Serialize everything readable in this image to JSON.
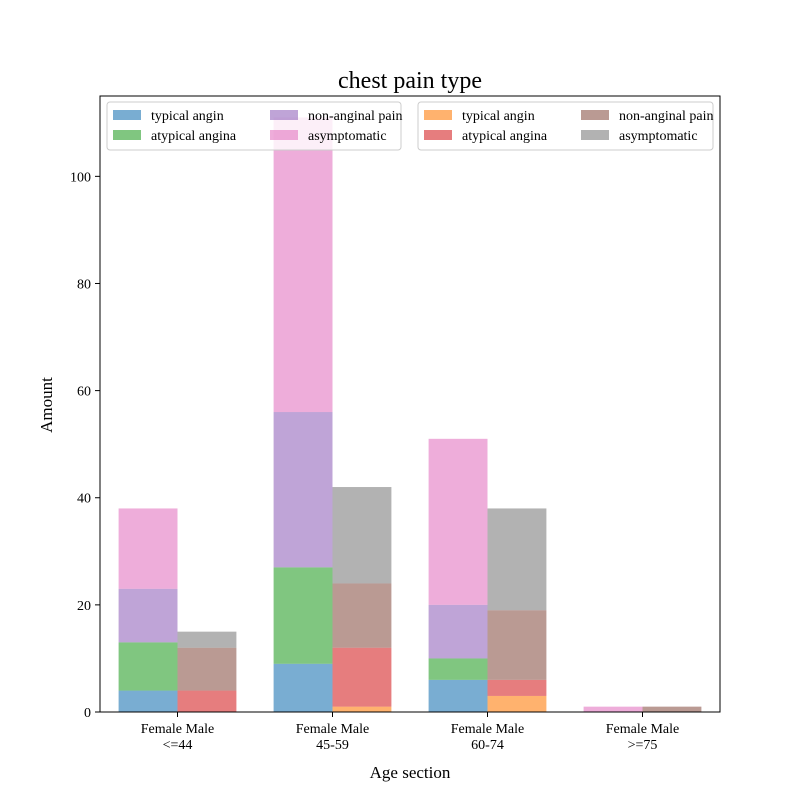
{
  "chart_data": {
    "type": "bar",
    "stacked": true,
    "title": "chest pain type",
    "xlabel": "Age section",
    "ylabel": "Amount",
    "ylim": [
      0,
      115
    ],
    "yticks": [
      0,
      20,
      40,
      60,
      80,
      100
    ],
    "categories": [
      "<=44",
      "45-59",
      "60-74",
      ">=75"
    ],
    "tick_labels": [
      "Female Male\n<=44",
      "Female Male\n45-59",
      "Female Male\n60-74",
      "Female Male\n>=75"
    ],
    "grid": false,
    "groups": [
      {
        "name": "Female",
        "legend_position": "top-left",
        "series": [
          {
            "name": "typical angin",
            "color": "#1f77b4",
            "values": [
              4,
              9,
              6,
              0
            ]
          },
          {
            "name": "atypical angina",
            "color": "#2ca02c",
            "values": [
              9,
              18,
              4,
              0
            ]
          },
          {
            "name": "non-anginal pain",
            "color": "#9467bd",
            "values": [
              10,
              29,
              10,
              0
            ]
          },
          {
            "name": "asymptomatic",
            "color": "#e377c2",
            "values": [
              15,
              55,
              31,
              1
            ]
          }
        ]
      },
      {
        "name": "Male",
        "legend_position": "top-right",
        "series": [
          {
            "name": "typical angin",
            "color": "#ff7f0e",
            "values": [
              0,
              1,
              3,
              0
            ]
          },
          {
            "name": "atypical angina",
            "color": "#d62728",
            "values": [
              4,
              11,
              3,
              0
            ]
          },
          {
            "name": "non-anginal pain",
            "color": "#8c564b",
            "values": [
              8,
              12,
              13,
              1
            ]
          },
          {
            "name": "asymptomatic",
            "color": "#7f7f7f",
            "values": [
              3,
              18,
              19,
              0
            ]
          }
        ]
      }
    ]
  }
}
